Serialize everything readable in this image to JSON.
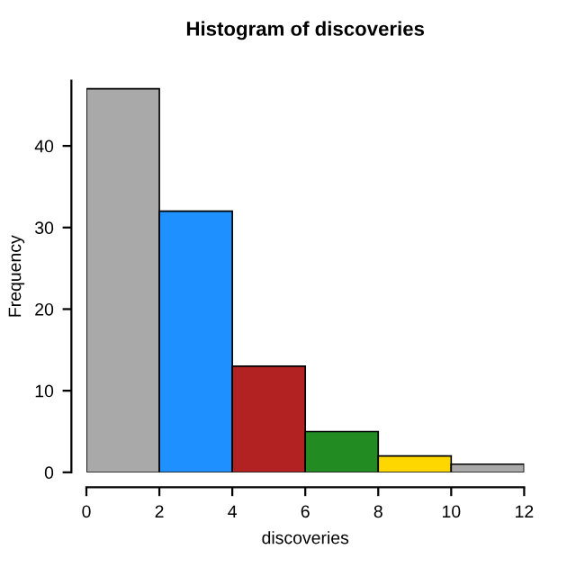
{
  "chart_data": {
    "type": "histogram",
    "title": "Histogram of discoveries",
    "xlabel": "discoveries",
    "ylabel": "Frequency",
    "bins": [
      0,
      2,
      4,
      6,
      8,
      10,
      12
    ],
    "values": [
      47,
      32,
      13,
      5,
      2,
      1
    ],
    "colors": [
      "#a9a9a9",
      "#1e90ff",
      "#b22222",
      "#228b22",
      "#ffd700",
      "#a9a9a9"
    ],
    "xlim": [
      0,
      12
    ],
    "ylim": [
      0,
      48
    ],
    "xticks": [
      0,
      2,
      4,
      6,
      8,
      10,
      12
    ],
    "yticks": [
      0,
      10,
      20,
      30,
      40
    ],
    "grid": false
  }
}
